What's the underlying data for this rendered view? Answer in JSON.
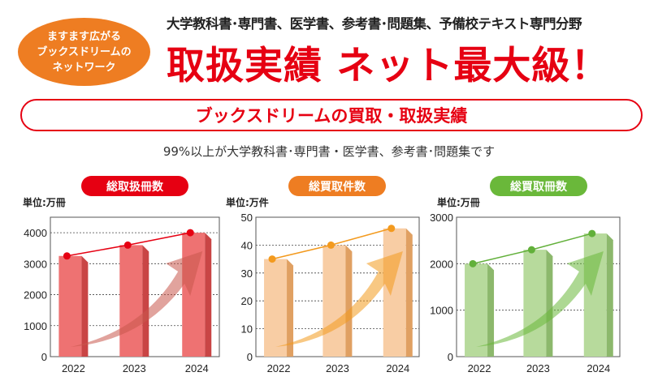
{
  "badge": {
    "lines": [
      "ますます広がる",
      "ブックスドリームの",
      "ネットワーク"
    ]
  },
  "subheadline": "大学教科書･専門書、医学書、参考書･問題集、予備校テキスト専門分野",
  "headline": "取扱実績 ネット最大級！",
  "banner": "ブックスドリームの買取・取扱実績",
  "note": "99%以上が大学教科書･専門書・医学書、参考書･問題集です",
  "chart_data": [
    {
      "type": "bar",
      "title": "総取扱冊数",
      "unit": "単位:万冊",
      "categories": [
        "2022",
        "2023",
        "2024"
      ],
      "values": [
        3250,
        3600,
        4000
      ],
      "yticks": [
        0,
        1000,
        2000,
        3000,
        4000
      ],
      "ylim": [
        0,
        4500
      ],
      "grid": true,
      "colors": {
        "title": "#e60012",
        "bar": "#ee7272",
        "side": "#c94545",
        "line": "#e60012",
        "arrow": "#c9574c"
      }
    },
    {
      "type": "bar",
      "title": "総買取件数",
      "unit": "単位:万件",
      "categories": [
        "2022",
        "2023",
        "2024"
      ],
      "values": [
        35,
        40,
        46
      ],
      "yticks": [
        0,
        10,
        20,
        30,
        40,
        50
      ],
      "ylim": [
        0,
        50
      ],
      "grid": true,
      "colors": {
        "title": "#ee7d22",
        "bar": "#f8cda4",
        "side": "#e0a062",
        "line": "#f39a1e",
        "arrow": "#f39a1e"
      }
    },
    {
      "type": "bar",
      "title": "総買取冊数",
      "unit": "単位:万冊",
      "categories": [
        "2022",
        "2023",
        "2024"
      ],
      "values": [
        2000,
        2300,
        2650
      ],
      "yticks": [
        0,
        1000,
        2000,
        3000
      ],
      "ylim": [
        0,
        3000
      ],
      "grid": true,
      "colors": {
        "title": "#6ab83a",
        "bar": "#b7da9c",
        "side": "#8cb86c",
        "line": "#62b03a",
        "arrow": "#6ab83a"
      }
    }
  ]
}
